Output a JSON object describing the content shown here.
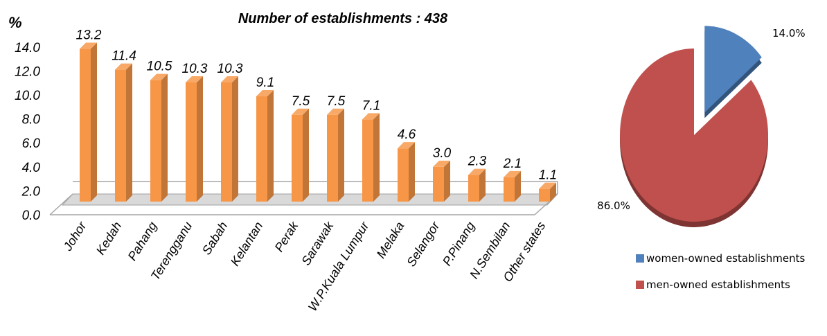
{
  "chart_data": [
    {
      "type": "bar",
      "title": "Number of establishments : 438",
      "ylabel": "%",
      "xlabel": "",
      "ylim": [
        0,
        14
      ],
      "yticks": [
        "0.0",
        "2.0",
        "4.0",
        "6.0",
        "8.0",
        "10.0",
        "12.0",
        "14.0"
      ],
      "categories": [
        "Johor",
        "Kedah",
        "Pahang",
        "Terengganu",
        "Sabah",
        "Kelantan",
        "Perak",
        "Sarawak",
        "W.P.Kuala Lumpur",
        "Melaka",
        "Selangor",
        "P.Pinang",
        "N.Sembilan",
        "Other states"
      ],
      "values": [
        13.2,
        11.4,
        10.5,
        10.3,
        10.3,
        9.1,
        7.5,
        7.5,
        7.1,
        4.6,
        3.0,
        2.3,
        2.1,
        1.1
      ],
      "value_labels": [
        "13.2",
        "11.4",
        "10.5",
        "10.3",
        "10.3",
        "9.1",
        "7.5",
        "7.5",
        "7.1",
        "4.6",
        "3.0",
        "2.3",
        "2.1",
        "1.1"
      ],
      "bar_color": "#f79646",
      "grid": false,
      "style": "3d-column"
    },
    {
      "type": "pie",
      "labels": [
        "women-owned establishments",
        "men-owned establishments"
      ],
      "values": [
        14.0,
        86.0
      ],
      "value_labels": [
        "14.0%",
        "86.0%"
      ],
      "colors": [
        "#4f81bd",
        "#c0504d"
      ],
      "exploded": "women-owned establishments",
      "legend_position": "bottom-right"
    }
  ]
}
